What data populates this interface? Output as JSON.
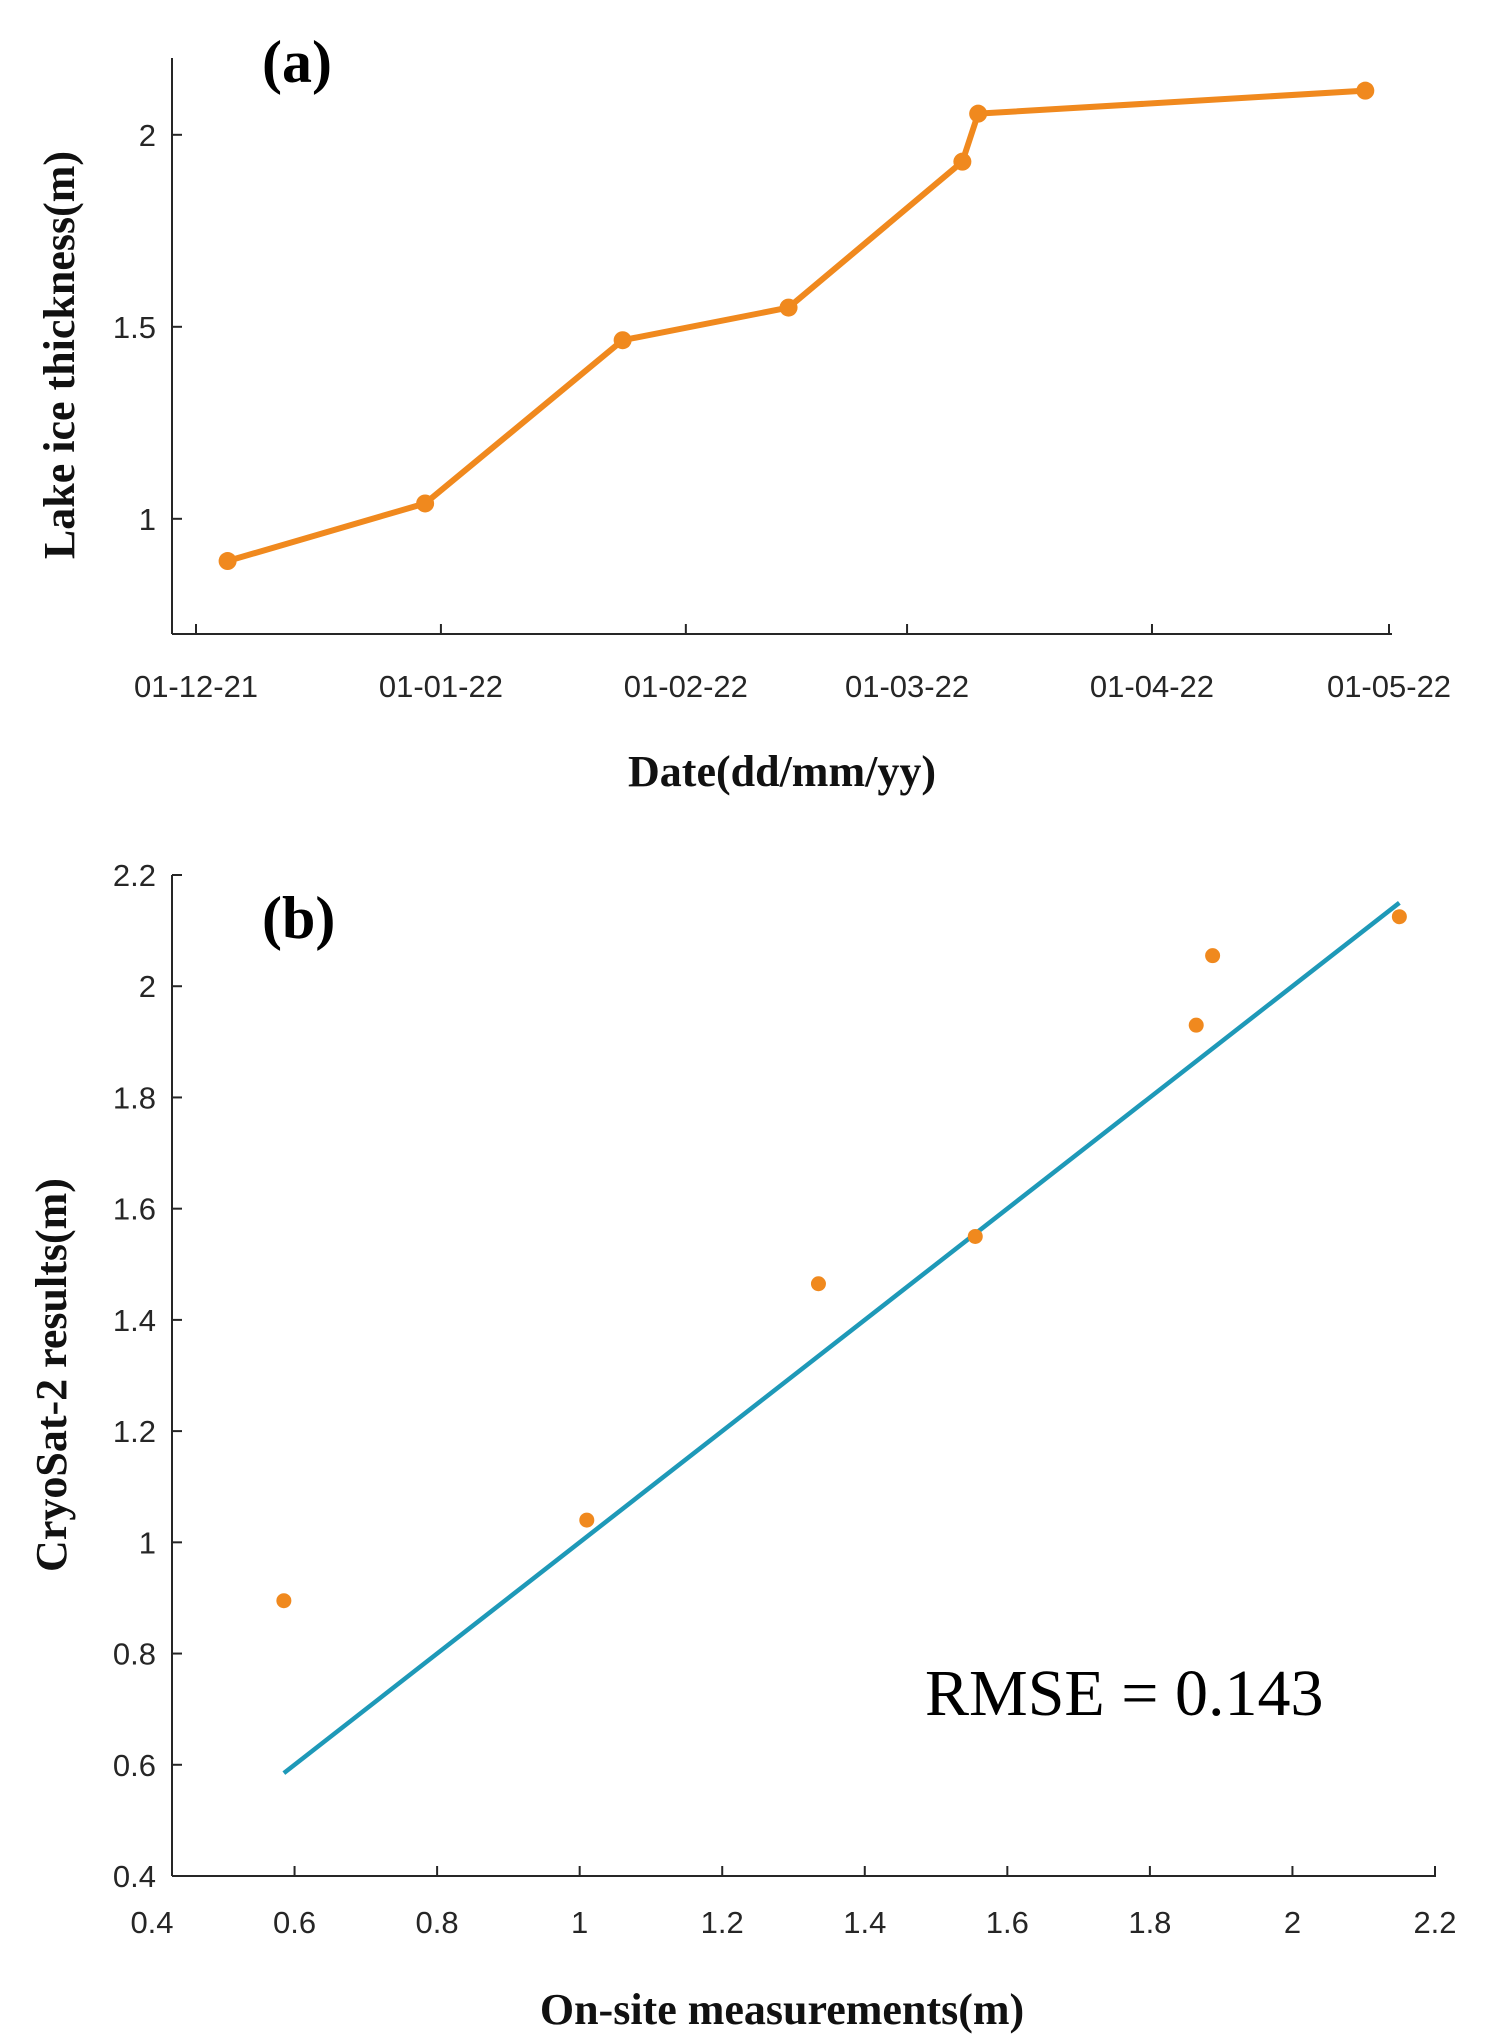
{
  "chart_data": [
    {
      "type": "line",
      "panel_label": "(a)",
      "xlabel": "Date(dd/mm/yy)",
      "ylabel": "Lake ice thickness(m)",
      "x_tick_labels": [
        "01-12-21",
        "01-01-22",
        "01-02-22",
        "01-03-22",
        "01-04-22",
        "01-05-22"
      ],
      "x_tick_days": [
        0,
        31,
        62,
        90,
        121,
        151
      ],
      "xlim_days": [
        0,
        151
      ],
      "y_ticks": [
        1,
        1.5,
        2
      ],
      "y_tick_labels": [
        "1",
        "1.5",
        "2"
      ],
      "ylim": [
        0.7,
        2.2
      ],
      "series": [
        {
          "name": "Lake ice thickness",
          "color": "#F0891E",
          "x_days": [
            4,
            29,
            54,
            75,
            97,
            99,
            148
          ],
          "values": [
            0.89,
            1.04,
            1.465,
            1.55,
            1.93,
            2.055,
            2.115
          ]
        }
      ]
    },
    {
      "type": "scatter",
      "panel_label": "(b)",
      "xlabel": "On-site measurements(m)",
      "ylabel": "CryoSat-2 results(m)",
      "x_ticks": [
        0.4,
        0.6,
        0.8,
        1,
        1.2,
        1.4,
        1.6,
        1.8,
        2,
        2.2
      ],
      "x_tick_labels": [
        "0.4",
        "0.6",
        "0.8",
        "1",
        "1.2",
        "1.4",
        "1.6",
        "1.8",
        "2",
        "2.2"
      ],
      "y_ticks": [
        0.4,
        0.6,
        0.8,
        1,
        1.2,
        1.4,
        1.6,
        1.8,
        2,
        2.2
      ],
      "y_tick_labels": [
        "0.4",
        "0.6",
        "0.8",
        "1",
        "1.2",
        "1.4",
        "1.6",
        "1.8",
        "2",
        "2.2"
      ],
      "xlim": [
        0.4,
        2.2
      ],
      "ylim": [
        0.4,
        2.2
      ],
      "points": {
        "color": "#F0891E",
        "x": [
          0.585,
          1.01,
          1.335,
          1.555,
          1.865,
          1.888,
          2.15
        ],
        "y": [
          0.895,
          1.04,
          1.465,
          1.55,
          1.93,
          2.055,
          2.125
        ]
      },
      "reference_line": {
        "color": "#1E99B8",
        "x": [
          0.585,
          2.15
        ],
        "y": [
          0.585,
          2.15
        ]
      },
      "annotation": "RMSE = 0.143"
    }
  ]
}
